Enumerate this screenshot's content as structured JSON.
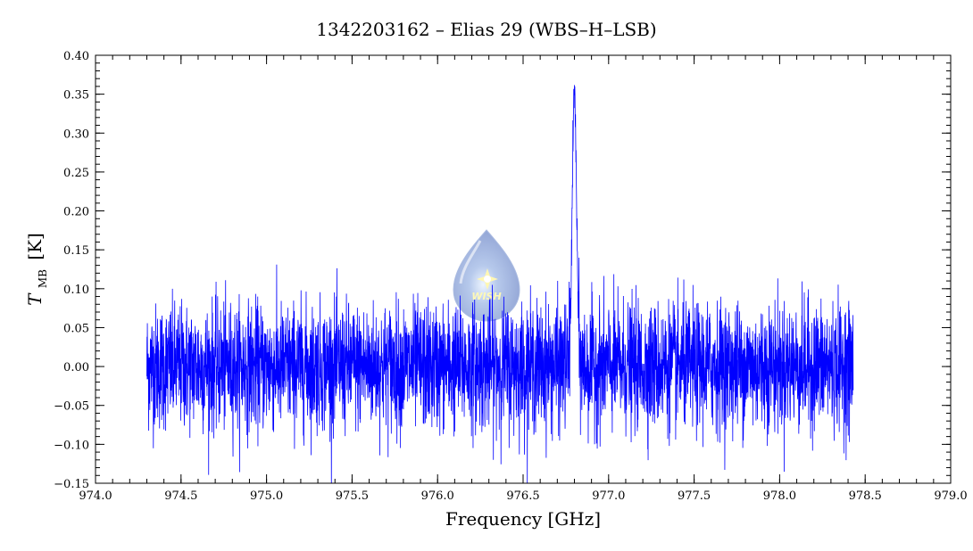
{
  "chart_data": {
    "type": "line",
    "title": "1342203162 – Elias 29 (WBS–H–LSB)",
    "xlabel": "Frequency [GHz]",
    "ylabel": {
      "symbol": "T",
      "subscript": "MB",
      "unit": "[K]"
    },
    "xlim": [
      974.0,
      979.0
    ],
    "ylim": [
      -0.15,
      0.4
    ],
    "xticks": [
      "974.0",
      "974.5",
      "975.0",
      "975.5",
      "976.0",
      "976.5",
      "977.0",
      "977.5",
      "978.0",
      "978.5",
      "979.0"
    ],
    "yticks": [
      "0.40",
      "0.35",
      "0.30",
      "0.25",
      "0.20",
      "0.15",
      "0.10",
      "0.05",
      "0.00",
      "−0.05",
      "−0.10",
      "−0.15"
    ],
    "grid": false,
    "series": [
      {
        "color": "#0000ff",
        "x_range": [
          974.3,
          978.43
        ],
        "noise_rms_K": 0.04,
        "line_peak": {
          "center_ghz": 976.8,
          "peak_K": 0.35,
          "fwhm_ghz": 0.03
        }
      }
    ],
    "logo": {
      "text": "WISH"
    }
  }
}
